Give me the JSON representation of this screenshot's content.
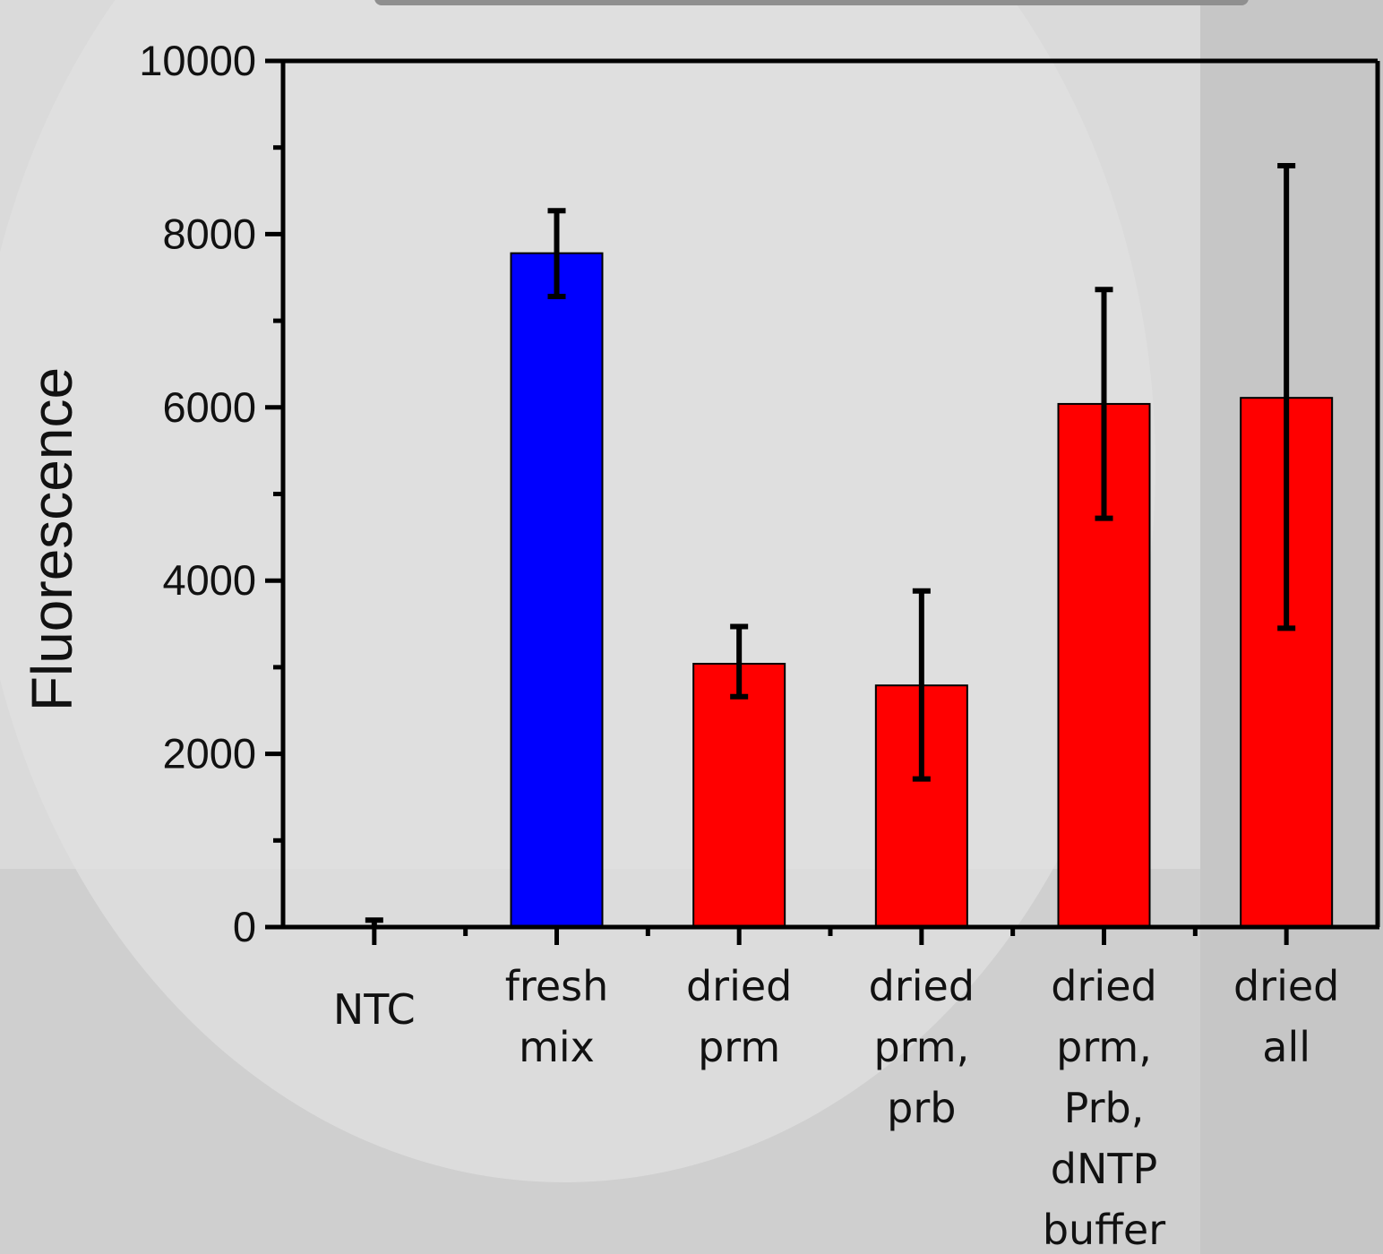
{
  "chart_data": {
    "type": "bar",
    "title": "",
    "xlabel": "",
    "ylabel": "Fluorescence",
    "ylim": [
      0,
      10000
    ],
    "yticks": [
      "0",
      "2000",
      "4000",
      "6000",
      "8000",
      "10000"
    ],
    "categories": [
      [
        "NTC"
      ],
      [
        "fresh",
        "mix"
      ],
      [
        "dried",
        "prm"
      ],
      [
        "dried",
        "prm,",
        "prb"
      ],
      [
        "dried",
        "prm,",
        "Prb,",
        "dNTP",
        "buffer"
      ],
      [
        "dried",
        "all"
      ]
    ],
    "values": [
      0,
      7780,
      3040,
      2790,
      6040,
      6110
    ],
    "error_low": [
      0,
      7280,
      2660,
      1710,
      4720,
      3450
    ],
    "error_high": [
      80,
      8270,
      3470,
      3880,
      7360,
      8790
    ],
    "bar_colors": [
      "#ff0000",
      "#0000ff",
      "#ff0000",
      "#ff0000",
      "#ff0000",
      "#ff0000"
    ],
    "grid": false,
    "legend": false
  }
}
